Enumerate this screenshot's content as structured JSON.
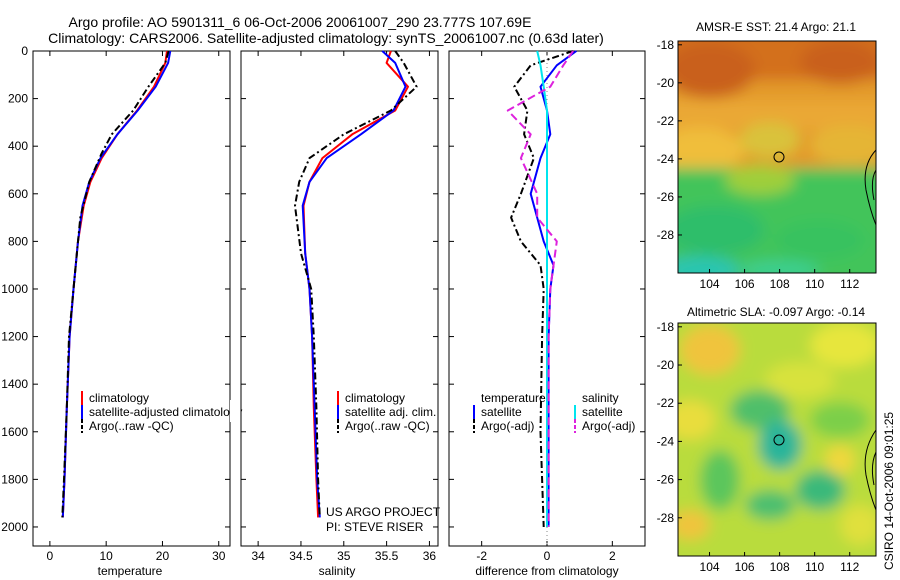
{
  "title_line1": "Argo profile: AO 5901311_6 06-Oct-2006 20061007_290 23.777S 107.69E",
  "title_line2": "Climatology: CARS2006. Satellite-adjusted climatology: synTS_20061007.nc (0.63d later)",
  "side_label": "CSIRO 14-Oct-2006 09:01:25",
  "colors": {
    "climatology": "#ff0000",
    "satellite": "#0000ff",
    "argo": "#000000",
    "sat_salinity": "#00e5ee",
    "argo_salinity": "#dd22dd",
    "dotted_zero": "#888888"
  },
  "chart_data": [
    {
      "type": "line",
      "panel": "temperature",
      "xlabel": "temperature",
      "ylabel": "",
      "xlim": [
        -3,
        32
      ],
      "ylim": [
        2080,
        0
      ],
      "y_reversed": true,
      "xticks": [
        "0",
        "10",
        "20",
        "30"
      ],
      "yticks": [
        "0",
        "200",
        "400",
        "600",
        "800",
        "1000",
        "1200",
        "1400",
        "1600",
        "1800",
        "2000"
      ],
      "legend": [
        "climatology",
        "satellite-adjusted climatology",
        "Argo(..raw -QC)"
      ],
      "annotation": [],
      "series": [
        {
          "name": "climatology",
          "color": "climatology",
          "dash": "none",
          "x": [
            20.8,
            20.5,
            18.5,
            15.5,
            12.0,
            9.2,
            7.2,
            6.0,
            5.0,
            4.2,
            3.5,
            3.0,
            2.6,
            2.3
          ],
          "y": [
            0,
            50,
            150,
            250,
            350,
            450,
            550,
            650,
            800,
            1000,
            1200,
            1500,
            1800,
            1960
          ]
        },
        {
          "name": "satellite-adjusted climatology",
          "color": "satellite",
          "dash": "none",
          "x": [
            21.4,
            21.0,
            18.8,
            15.6,
            12.0,
            9.0,
            7.0,
            5.8,
            5.0,
            4.2,
            3.5,
            3.0,
            2.6,
            2.3
          ],
          "y": [
            0,
            50,
            150,
            250,
            350,
            450,
            550,
            650,
            800,
            1000,
            1200,
            1500,
            1800,
            1960
          ]
        },
        {
          "name": "Argo(..raw -QC)",
          "color": "argo",
          "dash": "7,3,2,3",
          "x": [
            21.1,
            20.5,
            17.5,
            14.8,
            11.0,
            9.2,
            7.0,
            5.4,
            5.0,
            4.2,
            3.4,
            3.0,
            2.5,
            2.2
          ],
          "y": [
            0,
            50,
            150,
            250,
            350,
            430,
            550,
            700,
            800,
            1000,
            1200,
            1500,
            1800,
            1960
          ]
        }
      ]
    },
    {
      "type": "line",
      "panel": "salinity",
      "xlabel": "salinity",
      "ylabel": "",
      "xlim": [
        33.8,
        36.1
      ],
      "ylim": [
        2080,
        0
      ],
      "y_reversed": true,
      "xticks": [
        "34",
        "34.5",
        "35",
        "35.5",
        "36"
      ],
      "yticks": [],
      "legend": [
        "climatology",
        "satellite adj. clim.",
        "Argo(..raw -QC)"
      ],
      "annotation": [
        "US ARGO PROJECT",
        "PI: STEVE RISER"
      ],
      "series": [
        {
          "name": "climatology",
          "color": "climatology",
          "dash": "none",
          "x": [
            35.55,
            35.5,
            35.75,
            35.6,
            35.1,
            34.75,
            34.6,
            34.53,
            34.55,
            34.6,
            34.63,
            34.65,
            34.68,
            34.7
          ],
          "y": [
            0,
            50,
            150,
            250,
            350,
            450,
            550,
            650,
            850,
            1000,
            1200,
            1500,
            1800,
            1960
          ]
        },
        {
          "name": "satellite adj. clim.",
          "color": "satellite",
          "dash": "none",
          "x": [
            35.45,
            35.6,
            35.72,
            35.58,
            35.2,
            34.8,
            34.6,
            34.52,
            34.55,
            34.6,
            34.63,
            34.66,
            34.69,
            34.72
          ],
          "y": [
            0,
            50,
            150,
            250,
            350,
            450,
            550,
            650,
            850,
            1000,
            1200,
            1500,
            1800,
            1960
          ]
        },
        {
          "name": "Argo(..raw -QC)",
          "color": "argo",
          "dash": "7,3,2,3",
          "x": [
            35.6,
            35.7,
            35.85,
            35.55,
            35.0,
            34.6,
            34.48,
            34.43,
            34.5,
            34.62,
            34.65,
            34.68,
            34.7,
            34.72
          ],
          "y": [
            0,
            50,
            150,
            250,
            350,
            450,
            550,
            650,
            850,
            1000,
            1200,
            1500,
            1800,
            1960
          ]
        }
      ]
    },
    {
      "type": "line",
      "panel": "difference",
      "xlabel": "difference from climatology",
      "ylabel": "",
      "xlim": [
        -3,
        3
      ],
      "ylim": [
        2080,
        0
      ],
      "y_reversed": true,
      "xticks": [
        "-2",
        "0",
        "2"
      ],
      "yticks": [],
      "legend_headers": [
        "temperature",
        "salinity"
      ],
      "legend": [
        "satellite",
        "Argo(-adj)",
        "satellite",
        "Argo(-adj)"
      ],
      "annotation": [],
      "series": [
        {
          "name": "temperature satellite",
          "color": "satellite",
          "dash": "none",
          "x": [
            0.9,
            0.3,
            -0.2,
            0,
            0.1,
            -0.2,
            -0.5,
            -0.3,
            -0.1,
            0.2,
            0.1,
            0.05,
            0.05,
            0.05
          ],
          "y": [
            0,
            60,
            150,
            250,
            350,
            450,
            600,
            700,
            800,
            900,
            1000,
            1200,
            1600,
            2000
          ]
        },
        {
          "name": "temperature Argo(-adj)",
          "color": "argo",
          "dash": "7,3,2,3",
          "x": [
            0.8,
            -0.5,
            -1.0,
            -0.6,
            -0.7,
            -0.4,
            -0.8,
            -1.1,
            -0.8,
            -0.2,
            -0.1,
            -0.15,
            -0.2,
            -0.1
          ],
          "y": [
            0,
            60,
            150,
            250,
            350,
            450,
            600,
            700,
            800,
            900,
            1000,
            1200,
            1600,
            2000
          ]
        },
        {
          "name": "salinity satellite",
          "color": "sat_salinity",
          "dash": "none",
          "x": [
            -0.3,
            -0.2,
            -0.1,
            0,
            0,
            0,
            0,
            0,
            0,
            0,
            0,
            0,
            0,
            0
          ],
          "y": [
            0,
            60,
            150,
            250,
            350,
            450,
            600,
            700,
            800,
            900,
            1000,
            1200,
            1600,
            2000
          ]
        },
        {
          "name": "salinity Argo(-adj)",
          "color": "argo_salinity",
          "dash": "8,4",
          "x": [
            0.8,
            0.5,
            0.1,
            -1.2,
            -0.5,
            -0.8,
            -0.3,
            -0.3,
            0.3,
            0.2,
            0.1,
            0.05,
            0.05,
            0.05
          ],
          "y": [
            0,
            60,
            150,
            250,
            350,
            450,
            600,
            700,
            800,
            900,
            1000,
            1200,
            1600,
            2000
          ]
        }
      ]
    },
    {
      "type": "heatmap",
      "panel": "sst_map",
      "title": "AMSR-E SST: 21.4 Argo: 21.1",
      "xticks": [
        "104",
        "106",
        "108",
        "110",
        "112"
      ],
      "yticks": [
        "-18",
        "-20",
        "-22",
        "-24",
        "-26",
        "-28"
      ],
      "xlim": [
        102.2,
        113.5
      ],
      "ylim": [
        -30,
        -17.8
      ],
      "marker": {
        "lon": 107.69,
        "lat": -23.777
      }
    },
    {
      "type": "heatmap",
      "panel": "sla_map",
      "title": "Altimetric SLA: -0.097 Argo: -0.14",
      "xticks": [
        "104",
        "106",
        "108",
        "110",
        "112"
      ],
      "yticks": [
        "-18",
        "-20",
        "-22",
        "-24",
        "-26",
        "-28"
      ],
      "xlim": [
        102.2,
        113.5
      ],
      "ylim": [
        -30,
        -17.8
      ],
      "marker": {
        "lon": 107.69,
        "lat": -23.777
      }
    }
  ]
}
